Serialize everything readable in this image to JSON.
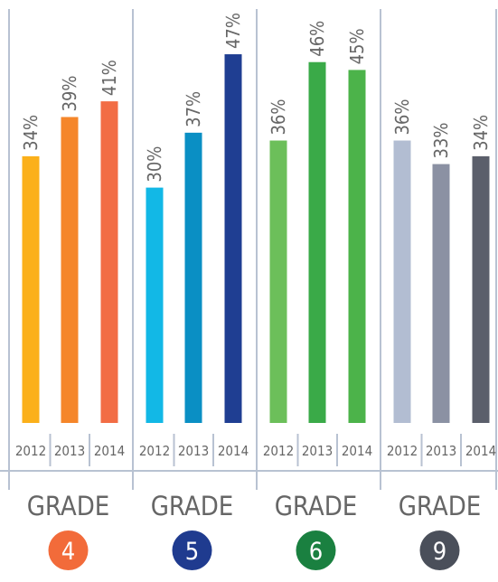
{
  "chart_data": [
    {
      "type": "bar",
      "title": "GRADE",
      "badge": "4",
      "badge_color": "#f26b3a",
      "categories": [
        "2012",
        "2013",
        "2014"
      ],
      "values": [
        34,
        39,
        41
      ],
      "value_labels": [
        "34%",
        "39%",
        "41%"
      ],
      "colors": [
        "#fbb01a",
        "#f5862a",
        "#f26d45"
      ]
    },
    {
      "type": "bar",
      "title": "GRADE",
      "badge": "5",
      "badge_color": "#1f3b8f",
      "categories": [
        "2012",
        "2013",
        "2014"
      ],
      "values": [
        30,
        37,
        47
      ],
      "value_labels": [
        "30%",
        "37%",
        "47%"
      ],
      "colors": [
        "#12b8e6",
        "#0a8fc4",
        "#1f3e92"
      ]
    },
    {
      "type": "bar",
      "title": "GRADE",
      "badge": "6",
      "badge_color": "#1a8040",
      "categories": [
        "2012",
        "2013",
        "2014"
      ],
      "values": [
        36,
        46,
        45
      ],
      "value_labels": [
        "36%",
        "46%",
        "45%"
      ],
      "colors": [
        "#6cbf5a",
        "#3aaa48",
        "#4cb34a"
      ]
    },
    {
      "type": "bar",
      "title": "GRADE",
      "badge": "9",
      "badge_color": "#4a4f5a",
      "categories": [
        "2012",
        "2013",
        "2014"
      ],
      "values": [
        36,
        33,
        34
      ],
      "value_labels": [
        "36%",
        "33%",
        "34%"
      ],
      "colors": [
        "#b2bdd2",
        "#8b91a3",
        "#5b5f6b"
      ]
    }
  ]
}
